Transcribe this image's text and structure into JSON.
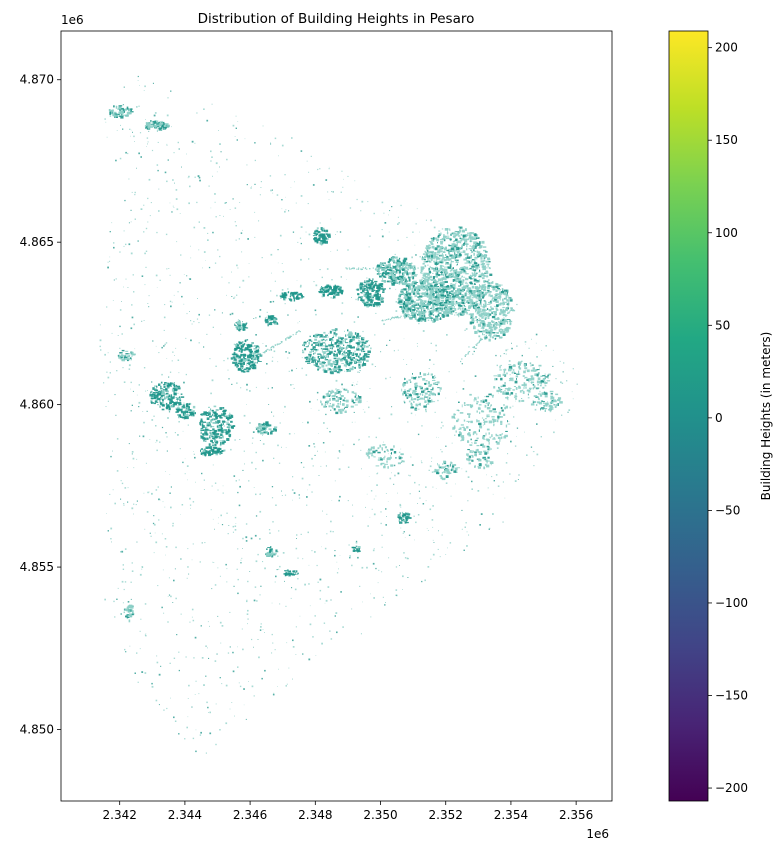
{
  "chart_data": {
    "type": "map",
    "title": "Distribution of Building Heights in Pesaro",
    "x_axis": {
      "ticks": [
        2.342,
        2.344,
        2.346,
        2.348,
        2.35,
        2.352,
        2.354,
        2.356
      ],
      "tick_labels": [
        "2.342",
        "2.344",
        "2.346",
        "2.348",
        "2.350",
        "2.352",
        "2.354",
        "2.356"
      ],
      "range": [
        2.3402,
        2.3571
      ],
      "offset_label": "1e6"
    },
    "y_axis": {
      "ticks": [
        4.85,
        4.855,
        4.86,
        4.865,
        4.87
      ],
      "tick_labels": [
        "4.850",
        "4.855",
        "4.860",
        "4.865",
        "4.870"
      ],
      "range": [
        4.8478,
        4.8715
      ],
      "offset_label": "1e6"
    },
    "colorbar": {
      "label": "Building Heights (in meters)",
      "colormap": "viridis",
      "range": [
        -207,
        209
      ],
      "ticks": [
        -200,
        -150,
        -100,
        -50,
        0,
        50,
        100,
        150,
        200
      ],
      "tick_labels": [
        "−200",
        "−150",
        "−100",
        "−50",
        "0",
        "50",
        "100",
        "150",
        "200"
      ]
    },
    "building_color": "#1f968b",
    "building_light_color": "#8ccfc7"
  }
}
